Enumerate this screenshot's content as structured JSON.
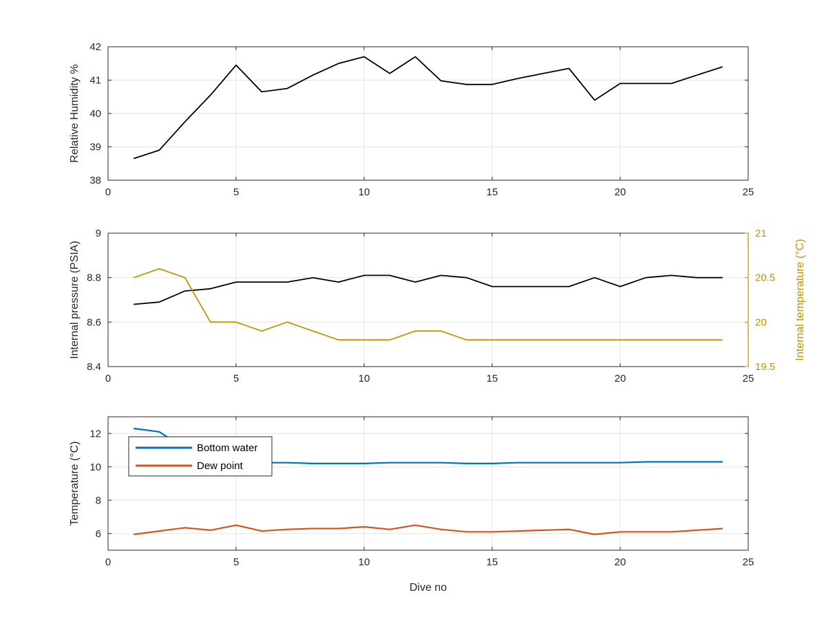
{
  "chart_data": [
    {
      "type": "line",
      "xlabel": "",
      "ylabel": "Relative Humidity %",
      "xlim": [
        0,
        25
      ],
      "ylim": [
        38,
        42
      ],
      "xticks": [
        "0",
        "5",
        "10",
        "15",
        "20",
        "25"
      ],
      "yticks": [
        "38",
        "39",
        "40",
        "41",
        "42"
      ],
      "grid": true,
      "x": [
        1,
        2,
        3,
        4,
        5,
        6,
        7,
        8,
        9,
        10,
        11,
        12,
        13,
        14,
        15,
        16,
        17,
        18,
        19,
        20,
        21,
        22,
        23,
        24
      ],
      "series": [
        {
          "color": "#000000",
          "values": [
            38.65,
            38.9,
            39.75,
            40.55,
            41.45,
            40.65,
            40.75,
            41.15,
            41.5,
            41.7,
            41.2,
            41.7,
            40.98,
            40.87,
            40.87,
            41.05,
            41.2,
            41.35,
            40.4,
            40.9,
            40.9,
            40.9,
            41.15,
            41.4
          ]
        }
      ]
    },
    {
      "type": "line",
      "xlabel": "",
      "ylabel": "Internal pressure (PSIA)",
      "y2label": "Internal temperature (°C)",
      "xlim": [
        0,
        25
      ],
      "ylim": [
        8.4,
        9
      ],
      "y2lim": [
        19.5,
        21
      ],
      "xticks": [
        "0",
        "5",
        "10",
        "15",
        "20",
        "25"
      ],
      "yticks": [
        "8.4",
        "8.6",
        "8.8",
        "9"
      ],
      "y2ticks": [
        "19.5",
        "20",
        "20.5",
        "21"
      ],
      "grid": true,
      "x": [
        1,
        2,
        3,
        4,
        5,
        6,
        7,
        8,
        9,
        10,
        11,
        12,
        13,
        14,
        15,
        16,
        17,
        18,
        19,
        20,
        21,
        22,
        23,
        24
      ],
      "series": [
        {
          "color": "#000000",
          "axis": "left",
          "values": [
            8.68,
            8.69,
            8.74,
            8.75,
            8.78,
            8.78,
            8.78,
            8.8,
            8.78,
            8.81,
            8.81,
            8.78,
            8.81,
            8.8,
            8.76,
            8.76,
            8.76,
            8.76,
            8.8,
            8.76,
            8.8,
            8.81,
            8.8,
            8.8
          ]
        },
        {
          "color": "#C49000",
          "axis": "right",
          "values": [
            20.5,
            20.6,
            20.5,
            20.0,
            20.0,
            19.9,
            20.0,
            19.9,
            19.8,
            19.8,
            19.8,
            19.9,
            19.9,
            19.8,
            19.8,
            19.8,
            19.8,
            19.8,
            19.8,
            19.8,
            19.8,
            19.8,
            19.8,
            19.8
          ]
        }
      ]
    },
    {
      "type": "line",
      "xlabel": "Dive no",
      "ylabel": "Temperature (°C)",
      "xlim": [
        0,
        25
      ],
      "ylim": [
        5,
        13
      ],
      "xticks": [
        "0",
        "5",
        "10",
        "15",
        "20",
        "25"
      ],
      "yticks": [
        "6",
        "8",
        "10",
        "12"
      ],
      "grid": true,
      "legend_position": "top-left",
      "series": [
        {
          "name": "Bottom water",
          "color": "#0072BD",
          "x": [
            1,
            1.5,
            2,
            2.3,
            2.6,
            3,
            3.5,
            4,
            5,
            6,
            7,
            8,
            9,
            10,
            11,
            12,
            13,
            14,
            15,
            16,
            17,
            18,
            19,
            20,
            21,
            22,
            23,
            24
          ],
          "values": [
            12.3,
            12.2,
            12.1,
            11.8,
            11.3,
            10.9,
            10.5,
            10.3,
            10.25,
            10.25,
            10.25,
            10.2,
            10.2,
            10.2,
            10.25,
            10.25,
            10.25,
            10.2,
            10.2,
            10.25,
            10.25,
            10.25,
            10.25,
            10.25,
            10.3,
            10.3,
            10.3,
            10.3
          ]
        },
        {
          "name": "Dew point",
          "color": "#D95319",
          "x": [
            1,
            2,
            3,
            4,
            5,
            6,
            7,
            8,
            9,
            10,
            11,
            12,
            13,
            14,
            15,
            16,
            17,
            18,
            19,
            20,
            21,
            22,
            23,
            24
          ],
          "values": [
            5.95,
            6.15,
            6.35,
            6.2,
            6.5,
            6.15,
            6.25,
            6.3,
            6.3,
            6.4,
            6.25,
            6.5,
            6.25,
            6.1,
            6.1,
            6.15,
            6.2,
            6.25,
            5.95,
            6.1,
            6.1,
            6.1,
            6.2,
            6.3
          ]
        }
      ]
    }
  ]
}
